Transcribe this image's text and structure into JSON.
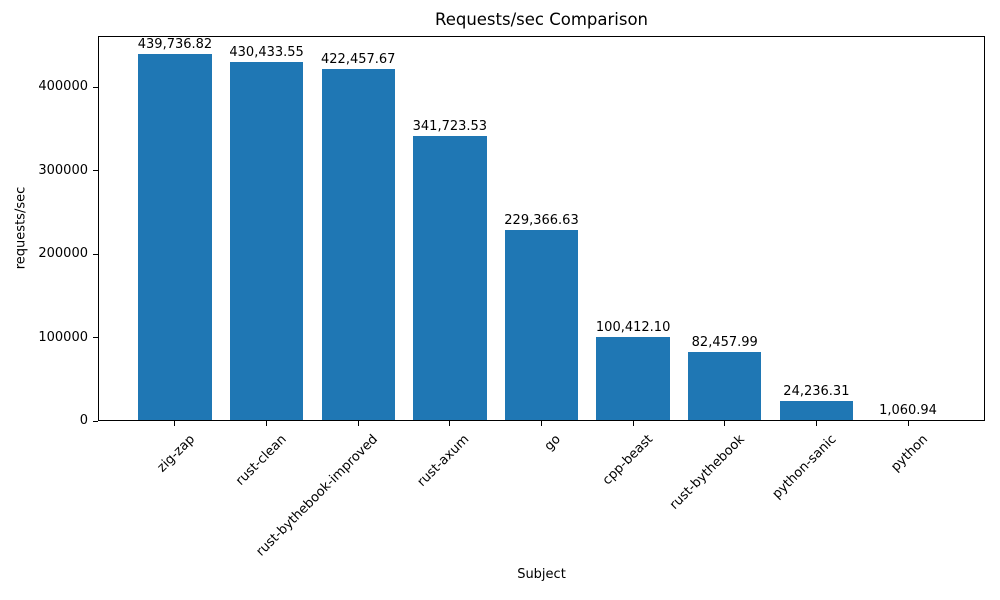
{
  "chart_data": {
    "type": "bar",
    "title": "Requests/sec Comparison",
    "xlabel": "Subject",
    "ylabel": "requests/sec",
    "categories": [
      "zig-zap",
      "rust-clean",
      "rust-bythebook-improved",
      "rust-axum",
      "go",
      "cpp-beast",
      "rust-bythebook",
      "python-sanic",
      "python"
    ],
    "values": [
      439736.82,
      430433.55,
      422457.67,
      341723.53,
      229366.63,
      100412.1,
      82457.99,
      24236.31,
      1060.94
    ],
    "value_labels": [
      "439,736.82",
      "430,433.55",
      "422,457.67",
      "341,723.53",
      "229,366.63",
      "100,412.10",
      "82,457.99",
      "24,236.31",
      "1,060.94"
    ],
    "yticks": [
      0,
      100000,
      200000,
      300000,
      400000
    ],
    "ytick_labels": [
      "0",
      "100000",
      "200000",
      "300000",
      "400000"
    ],
    "ylim": [
      0,
      461723.66
    ],
    "bar_color": "#1f77b4",
    "grid": false,
    "legend_position": "none",
    "x_tick_rotation_deg": 45
  }
}
